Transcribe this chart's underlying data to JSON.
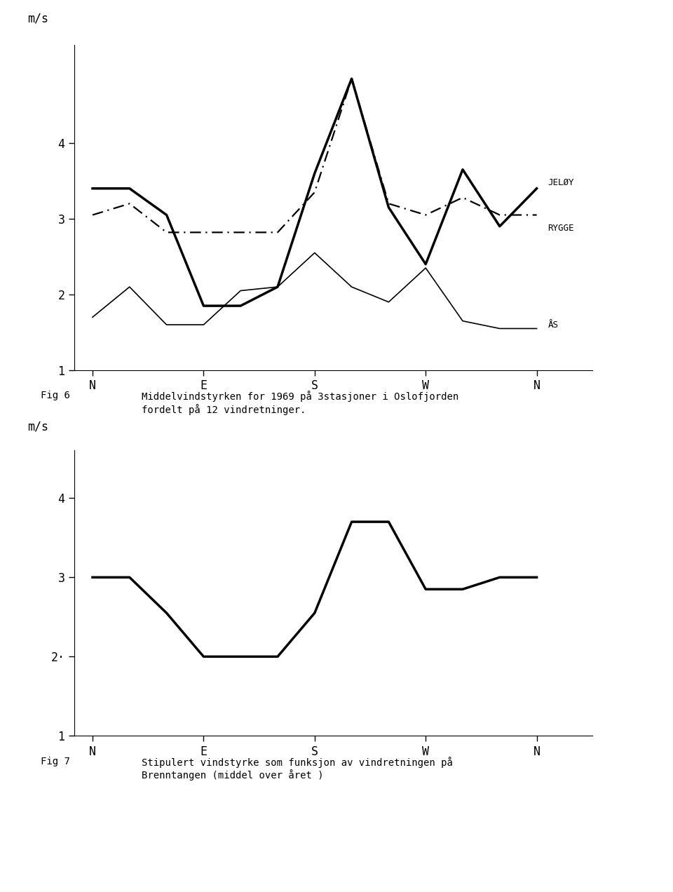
{
  "fig6": {
    "x_labels": [
      "N",
      "E",
      "S",
      "W",
      "N"
    ],
    "x_positions": [
      0,
      3,
      6,
      9,
      12
    ],
    "jeloy": {
      "x": [
        0,
        1,
        2,
        3,
        4,
        5,
        6,
        7,
        8,
        9,
        10,
        11,
        12
      ],
      "y": [
        3.4,
        3.4,
        3.05,
        1.85,
        1.85,
        2.1,
        3.6,
        4.85,
        3.15,
        2.4,
        3.65,
        2.9,
        3.4
      ],
      "label": "JELØY",
      "linewidth": 2.5
    },
    "rygge": {
      "x": [
        0,
        1,
        2,
        3,
        4,
        5,
        6,
        7,
        8,
        9,
        10,
        11,
        12
      ],
      "y": [
        3.05,
        3.2,
        2.82,
        2.82,
        2.82,
        2.82,
        3.35,
        4.85,
        3.2,
        3.05,
        3.28,
        3.05,
        3.05
      ],
      "label": "RYGGE",
      "linewidth": 1.6
    },
    "aas": {
      "x": [
        0,
        1,
        2,
        3,
        4,
        5,
        6,
        7,
        8,
        9,
        10,
        11,
        12
      ],
      "y": [
        1.7,
        2.1,
        1.6,
        1.6,
        2.05,
        2.1,
        2.55,
        2.1,
        1.9,
        2.35,
        1.65,
        1.55,
        1.55
      ],
      "label": "ÅS",
      "linewidth": 1.2
    },
    "ylim": [
      1.0,
      5.3
    ],
    "yticks": [
      1,
      2,
      3,
      4
    ],
    "yticklabels": [
      "1",
      "2",
      "3",
      "4"
    ],
    "ylabel": "m/s",
    "caption_fig": "Fig 6",
    "caption_text": "Middelvindstyrken for 1969 på 3stasjoner i Oslofjorden\nfordelt på 12 vindretninger."
  },
  "fig7": {
    "x_labels": [
      "N",
      "E",
      "S",
      "W",
      "N"
    ],
    "x_positions": [
      0,
      3,
      6,
      9,
      12
    ],
    "brenntangen": {
      "x": [
        0,
        1,
        2,
        3,
        4,
        5,
        6,
        7,
        8,
        9,
        10,
        11,
        12
      ],
      "y": [
        3.0,
        3.0,
        2.55,
        2.0,
        2.0,
        2.0,
        2.55,
        3.7,
        3.7,
        2.85,
        2.85,
        3.0,
        3.0
      ],
      "linewidth": 2.5
    },
    "ylim": [
      1.0,
      4.6
    ],
    "yticks": [
      1,
      2,
      3,
      4
    ],
    "yticklabels": [
      "1",
      "2·",
      "3",
      "4"
    ],
    "ylabel": "m/s",
    "caption_fig": "Fig 7",
    "caption_text": "Stipulert vindstyrke som funksjon av vindretningen på\nBrenntangen (middel over året )"
  },
  "background_color": "#ffffff",
  "font_family": "DejaVu Sans Mono"
}
